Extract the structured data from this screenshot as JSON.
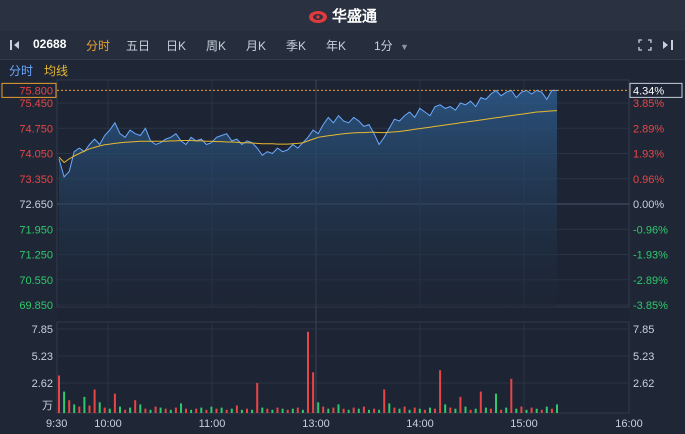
{
  "app": {
    "brand": "华盛通"
  },
  "toolbar": {
    "code": "02688",
    "tabs": [
      "分时",
      "五日",
      "日K",
      "周K",
      "月K",
      "季K",
      "年K"
    ],
    "active_tab": "分时",
    "interval": "1分"
  },
  "subbar": {
    "tab1": "分时",
    "tab2": "均线"
  },
  "colors": {
    "up": "#e84545",
    "down": "#2fc86c",
    "line": "#6aa9ff",
    "avg": "#e8b930",
    "accent": "#e8a030"
  },
  "chart_data": {
    "type": "line",
    "prev_close": 72.65,
    "current_price": "75.800",
    "current_pct": "4.34%",
    "price_ticks_left": [
      "75.450",
      "74.750",
      "74.050",
      "73.350",
      "72.650",
      "71.950",
      "71.250",
      "70.550",
      "69.850"
    ],
    "price_ticks_right": [
      "3.85%",
      "2.89%",
      "1.93%",
      "0.96%",
      "0.00%",
      "-0.96%",
      "-1.93%",
      "-2.89%",
      "-3.85%"
    ],
    "ylim": [
      69.5,
      75.8
    ],
    "volume_ticks": [
      "7.85",
      "5.23",
      "2.62",
      "万"
    ],
    "volume_ticks_right": [
      "7.85",
      "5.23",
      "2.62"
    ],
    "x_ticks": [
      "9:30",
      "10:00",
      "11:00",
      "13:00",
      "14:00",
      "15:00",
      "16:00"
    ],
    "series": [
      {
        "values": [
          73.9,
          73.4,
          73.55,
          74.1,
          74.2,
          74.1,
          74.3,
          74.45,
          74.3,
          74.55,
          74.7,
          74.9,
          74.6,
          74.5,
          74.7,
          74.6,
          74.55,
          74.75,
          74.4,
          74.3,
          74.35,
          74.45,
          74.5,
          74.6,
          74.4,
          74.3,
          74.5,
          74.4,
          74.45,
          74.3,
          74.35,
          74.5,
          74.55,
          74.6,
          74.4,
          74.45,
          74.3,
          74.4,
          74.35,
          74.2,
          74.0,
          74.1,
          74.05,
          74.2,
          74.1,
          74.15,
          74.3,
          74.2,
          74.35,
          74.5,
          74.7,
          74.6,
          74.85,
          75.05,
          74.9,
          75.1,
          74.95,
          74.9,
          75.05,
          74.95,
          74.8,
          74.85,
          74.6,
          74.3,
          74.5,
          74.75,
          75.0,
          74.95,
          75.1,
          75.2,
          75.05,
          75.3,
          75.2,
          75.1,
          75.35,
          75.4,
          75.3,
          75.35,
          75.25,
          75.45,
          75.4,
          75.5,
          75.35,
          75.6,
          75.55,
          75.7,
          75.8,
          75.65,
          75.75,
          75.8,
          75.6,
          75.75,
          75.8,
          75.7,
          75.8,
          75.75,
          75.55,
          75.8,
          75.8
        ]
      },
      {
        "values": [
          73.95,
          73.8,
          73.9,
          73.98,
          74.05,
          74.12,
          74.18,
          74.22,
          74.26,
          74.29,
          74.31,
          74.33,
          74.35,
          74.36,
          74.37,
          74.38,
          74.39,
          74.39,
          74.39,
          74.39,
          74.39,
          74.39,
          74.4,
          74.4,
          74.41,
          74.41,
          74.41,
          74.4,
          74.4,
          74.39,
          74.39,
          74.38,
          74.38,
          74.37,
          74.37,
          74.36,
          74.35,
          74.35,
          74.34,
          74.33,
          74.32,
          74.32,
          74.32,
          74.31,
          74.31,
          74.31,
          74.32,
          74.33,
          74.35,
          74.4,
          74.45,
          74.5,
          74.52,
          74.54,
          74.56,
          74.58,
          74.6,
          74.61,
          74.62,
          74.63,
          74.63,
          74.64,
          74.64,
          74.63,
          74.63,
          74.64,
          74.65,
          74.66,
          74.68,
          74.7,
          74.72,
          74.74,
          74.76,
          74.78,
          74.8,
          74.82,
          74.84,
          74.86,
          74.88,
          74.9,
          74.92,
          74.94,
          74.96,
          74.98,
          75.0,
          75.02,
          75.04,
          75.06,
          75.08,
          75.1,
          75.12,
          75.14,
          75.16,
          75.18,
          75.2,
          75.21,
          75.22,
          75.23,
          75.24
        ]
      }
    ],
    "volume_max": 7.85,
    "volume": [
      3.5,
      2.0,
      1.2,
      0.8,
      0.6,
      1.5,
      0.7,
      2.2,
      1.0,
      0.5,
      0.4,
      1.8,
      0.6,
      0.3,
      0.5,
      1.2,
      0.8,
      0.4,
      0.3,
      0.6,
      0.5,
      0.4,
      0.3,
      0.5,
      0.9,
      0.4,
      0.3,
      0.4,
      0.5,
      0.3,
      0.6,
      0.4,
      0.5,
      0.3,
      0.4,
      0.7,
      0.3,
      0.4,
      0.3,
      2.8,
      0.5,
      0.4,
      0.3,
      0.5,
      0.4,
      0.3,
      0.4,
      0.5,
      0.3,
      7.6,
      3.8,
      1.0,
      0.6,
      0.4,
      0.5,
      0.8,
      0.4,
      0.3,
      0.5,
      0.4,
      0.6,
      0.3,
      0.4,
      0.3,
      2.2,
      0.9,
      0.5,
      0.4,
      0.6,
      0.3,
      0.5,
      0.4,
      0.3,
      0.5,
      0.4,
      4.0,
      0.8,
      0.5,
      0.4,
      1.5,
      0.6,
      0.3,
      0.4,
      2.0,
      0.5,
      0.4,
      1.8,
      0.3,
      0.5,
      3.2,
      0.4,
      0.6,
      0.3,
      0.5,
      0.4,
      0.3,
      0.6,
      0.4,
      0.8
    ],
    "volume_up": [
      true,
      false,
      true,
      false,
      true,
      false,
      true,
      true,
      false,
      true,
      false,
      true,
      false,
      true,
      false,
      true,
      false,
      true,
      false,
      true,
      false,
      true,
      false,
      true,
      false,
      true,
      false,
      true,
      false,
      true,
      false,
      true,
      false,
      true,
      false,
      true,
      false,
      true,
      false,
      true,
      false,
      true,
      false,
      true,
      false,
      true,
      false,
      true,
      false,
      true,
      true,
      false,
      true,
      false,
      true,
      false,
      true,
      false,
      true,
      false,
      true,
      false,
      true,
      false,
      true,
      false,
      true,
      false,
      true,
      false,
      true,
      false,
      true,
      false,
      true,
      true,
      false,
      true,
      false,
      true,
      false,
      true,
      false,
      true,
      false,
      true,
      false,
      true,
      false,
      true,
      false,
      true,
      false,
      true,
      false,
      true,
      false,
      true,
      false
    ]
  }
}
